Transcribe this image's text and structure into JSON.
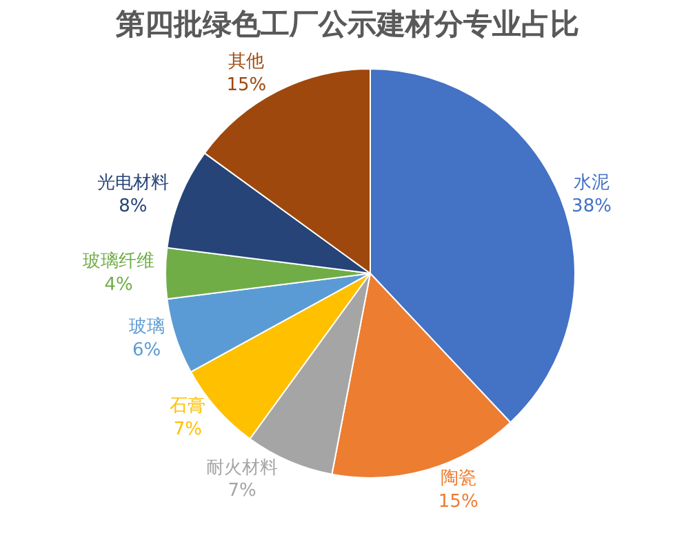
{
  "chart_data": {
    "type": "pie",
    "title": "第四批绿色工厂公示建材分专业占比",
    "categories": [
      "水泥",
      "陶瓷",
      "耐火材料",
      "石膏",
      "玻璃",
      "玻璃纤维",
      "光电材料",
      "其他"
    ],
    "values": [
      38,
      15,
      7,
      7,
      6,
      4,
      8,
      15
    ],
    "value_labels": [
      "38%",
      "15%",
      "7%",
      "7%",
      "6%",
      "4%",
      "8%",
      "15%"
    ],
    "colors": [
      "#4472c4",
      "#ed7d31",
      "#a5a5a5",
      "#ffc000",
      "#5b9bd5",
      "#70ad47",
      "#264478",
      "#9e480e"
    ],
    "legend": false
  }
}
